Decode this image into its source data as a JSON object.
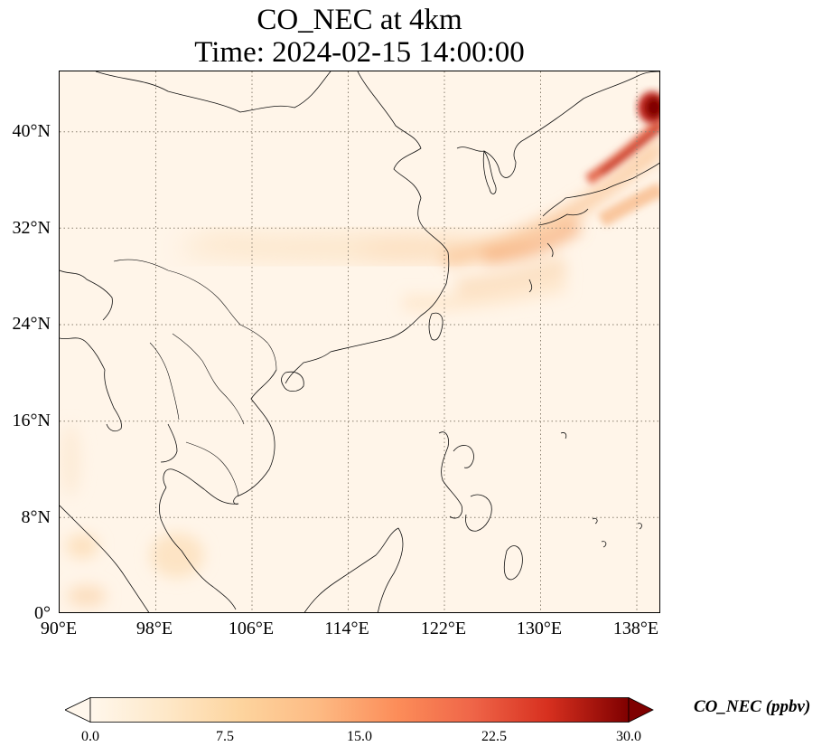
{
  "title": {
    "line1": "CO_NEC at 4km",
    "line2": "Time: 2024-02-15 14:00:00"
  },
  "map": {
    "lon_range": [
      90,
      140
    ],
    "lat_range": [
      0,
      45
    ],
    "lat_ticks": [
      "40°N",
      "32°N",
      "24°N",
      "16°N",
      "8°N",
      "0°"
    ],
    "lon_ticks": [
      "90°E",
      "98°E",
      "106°E",
      "114°E",
      "122°E",
      "130°E",
      "138°E"
    ],
    "gridlines": "dotted",
    "field_colors": {
      "background": "#fff5e9",
      "low": "#fde4c6",
      "mid": "#f6a66c",
      "high": "#c2281a",
      "max": "#800000"
    }
  },
  "colorbar": {
    "ticks": [
      "0.0",
      "7.5",
      "15.0",
      "22.5",
      "30.0"
    ],
    "label": "CO_NEC (ppbv)",
    "colormap": "OrRd",
    "extend": "both",
    "range": [
      0,
      30
    ]
  }
}
